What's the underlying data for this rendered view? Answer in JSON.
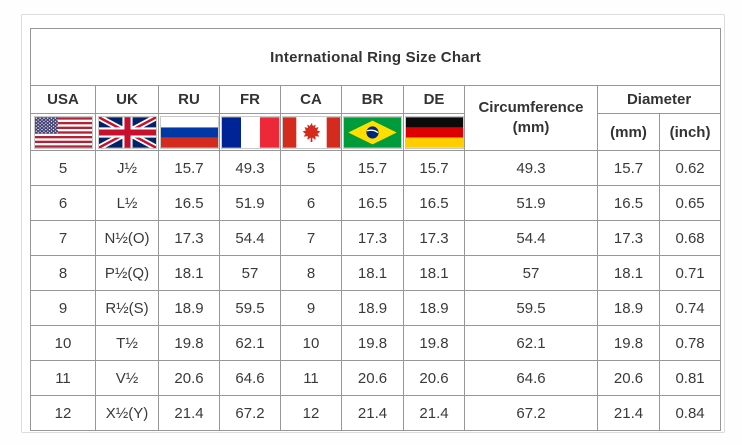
{
  "title": "International Ring Size Chart",
  "header": {
    "country_codes": [
      "USA",
      "UK",
      "RU",
      "FR",
      "CA",
      "BR",
      "DE"
    ],
    "flags": [
      "usa-flag",
      "uk-flag",
      "russia-flag",
      "france-flag",
      "canada-flag",
      "brazil-flag",
      "germany-flag"
    ],
    "circumference_label": "Circumference",
    "circumference_unit": "(mm)",
    "diameter_label": "Diameter",
    "diameter_units": [
      "(mm)",
      "(inch)"
    ]
  },
  "chart_data": {
    "type": "table",
    "title": "International Ring Size Chart",
    "columns": [
      "USA",
      "UK",
      "RU",
      "FR",
      "CA",
      "BR",
      "DE",
      "Circumference (mm)",
      "Diameter (mm)",
      "Diameter (inch)"
    ],
    "rows": [
      [
        "5",
        "J½",
        "15.7",
        "49.3",
        "5",
        "15.7",
        "15.7",
        "49.3",
        "15.7",
        "0.62"
      ],
      [
        "6",
        "L½",
        "16.5",
        "51.9",
        "6",
        "16.5",
        "16.5",
        "51.9",
        "16.5",
        "0.65"
      ],
      [
        "7",
        "N½(O)",
        "17.3",
        "54.4",
        "7",
        "17.3",
        "17.3",
        "54.4",
        "17.3",
        "0.68"
      ],
      [
        "8",
        "P½(Q)",
        "18.1",
        "57",
        "8",
        "18.1",
        "18.1",
        "57",
        "18.1",
        "0.71"
      ],
      [
        "9",
        "R½(S)",
        "18.9",
        "59.5",
        "9",
        "18.9",
        "18.9",
        "59.5",
        "18.9",
        "0.74"
      ],
      [
        "10",
        "T½",
        "19.8",
        "62.1",
        "10",
        "19.8",
        "19.8",
        "62.1",
        "19.8",
        "0.78"
      ],
      [
        "11",
        "V½",
        "20.6",
        "64.6",
        "11",
        "20.6",
        "20.6",
        "64.6",
        "20.6",
        "0.81"
      ],
      [
        "12",
        "X½(Y)",
        "21.4",
        "67.2",
        "12",
        "21.4",
        "21.4",
        "67.2",
        "21.4",
        "0.84"
      ]
    ]
  },
  "colors": {
    "table_border": "#979797",
    "outer_frame": "#dcdcdc",
    "text": "#333333",
    "title_text": "#141414",
    "background": "#ffffff"
  }
}
